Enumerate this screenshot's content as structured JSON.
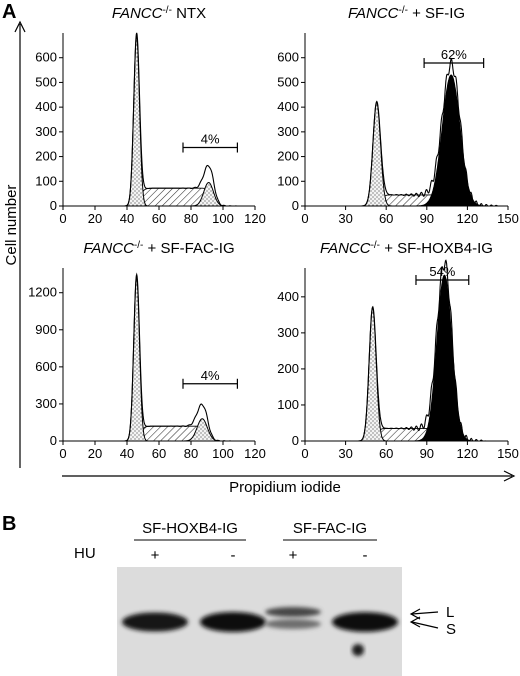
{
  "panel_a_label": "A",
  "panel_b_label": "B",
  "shared_ylabel": "Cell number",
  "shared_xlabel": "Propidium iodide",
  "chart_data": [
    {
      "type": "area",
      "title_italic": "FANCC",
      "title_sup": "-/-",
      "title_rest": " NTX",
      "xlim": [
        0,
        120
      ],
      "x_ticks": [
        "0",
        "20",
        "40",
        "60",
        "80",
        "100",
        "120"
      ],
      "ylim": [
        0,
        700
      ],
      "y_ticks": [
        "0",
        "100",
        "200",
        "300",
        "400",
        "500",
        "600"
      ],
      "peaks": [
        {
          "name": "G1",
          "center": 46,
          "height": 690,
          "width": 1.8
        },
        {
          "name": "G2",
          "center": 91,
          "height": 95,
          "width": 3.0
        }
      ],
      "s_phase_plateau": 72,
      "bracket_range": [
        75,
        109
      ],
      "bracket_label": "4%",
      "filled_peak": false
    },
    {
      "type": "area",
      "title_italic": "FANCC",
      "title_sup": "-/-",
      "title_rest": " + SF-IG",
      "xlim": [
        0,
        150
      ],
      "x_ticks": [
        "0",
        "30",
        "60",
        "90",
        "120",
        "150"
      ],
      "ylim": [
        0,
        700
      ],
      "y_ticks": [
        "0",
        "100",
        "200",
        "300",
        "400",
        "500",
        "600"
      ],
      "peaks": [
        {
          "name": "G1",
          "center": 53,
          "height": 420,
          "width": 2.8
        },
        {
          "name": "G2",
          "center": 108,
          "height": 530,
          "width": 6.5
        }
      ],
      "s_phase_plateau": 45,
      "bracket_range": [
        88,
        132
      ],
      "bracket_label": "62%",
      "filled_peak": true
    },
    {
      "type": "area",
      "title_italic": "FANCC",
      "title_sup": "-/-",
      "title_rest": " + SF-FAC-IG",
      "xlim": [
        0,
        120
      ],
      "x_ticks": [
        "0",
        "20",
        "40",
        "60",
        "80",
        "100",
        "120"
      ],
      "ylim": [
        0,
        1400
      ],
      "y_ticks": [
        "0",
        "300",
        "600",
        "900",
        "1200"
      ],
      "peaks": [
        {
          "name": "G1",
          "center": 46,
          "height": 1330,
          "width": 1.8
        },
        {
          "name": "G2",
          "center": 87,
          "height": 180,
          "width": 3.2
        }
      ],
      "s_phase_plateau": 120,
      "bracket_range": [
        75,
        109
      ],
      "bracket_label": "4%",
      "filled_peak": false
    },
    {
      "type": "area",
      "title_italic": "FANCC",
      "title_sup": "-/-",
      "title_rest": " + SF-HOXB4-IG",
      "xlim": [
        0,
        150
      ],
      "x_ticks": [
        "0",
        "30",
        "60",
        "90",
        "120",
        "150"
      ],
      "ylim": [
        0,
        480
      ],
      "y_ticks": [
        "0",
        "100",
        "200",
        "300",
        "400"
      ],
      "peaks": [
        {
          "name": "G1",
          "center": 50,
          "height": 370,
          "width": 2.6
        },
        {
          "name": "G2",
          "center": 103,
          "height": 460,
          "width": 5.5
        }
      ],
      "s_phase_plateau": 35,
      "bracket_range": [
        82,
        121
      ],
      "bracket_label": "54%",
      "filled_peak": true
    }
  ],
  "blot": {
    "groups": [
      {
        "label": "SF-HOXB4-IG",
        "lanes": [
          "+",
          "-"
        ]
      },
      {
        "label": "SF-FAC-IG",
        "lanes": [
          "+",
          "-"
        ]
      }
    ],
    "row_label": "HU",
    "bands": [
      {
        "lane": 1,
        "intensity": 0.85,
        "form": "S"
      },
      {
        "lane": 2,
        "intensity": 1.0,
        "form": "S"
      },
      {
        "lane": 3,
        "intensity": 0.55,
        "form": "L+S"
      },
      {
        "lane": 4,
        "intensity": 0.95,
        "form": "S"
      }
    ],
    "band_markers": [
      "L",
      "S"
    ]
  }
}
